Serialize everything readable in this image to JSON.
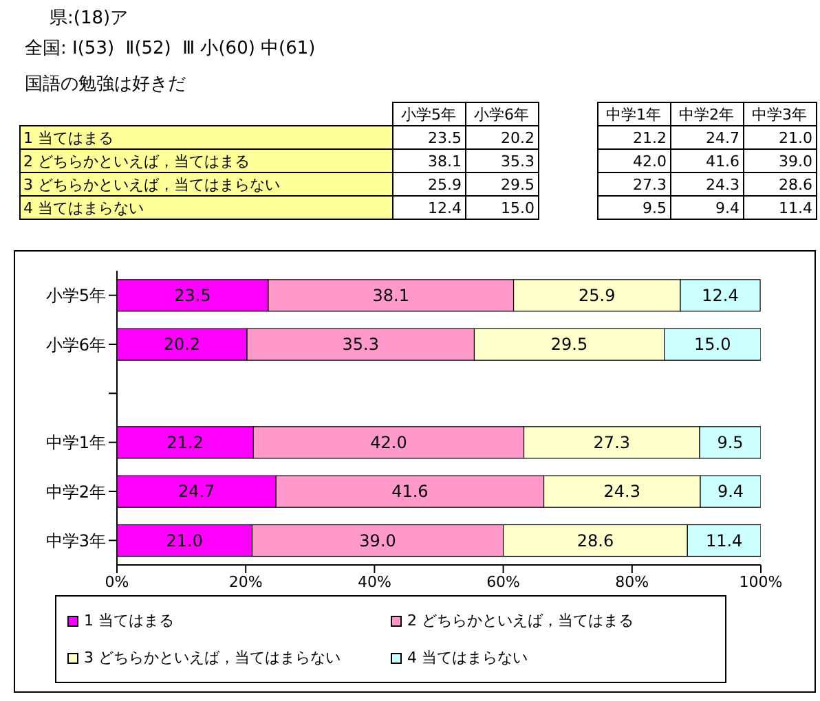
{
  "chart_data": {
    "type": "bar",
    "orientation": "horizontal",
    "stacked": true,
    "title": "県:(18)ア",
    "subtitle": "全国: Ⅰ(53)  Ⅱ(52)  Ⅲ 小(60) 中(61)",
    "annotations": [
      "国語の勉強は好きだ"
    ],
    "categories": [
      "小学5年",
      "小学6年",
      null,
      "中学1年",
      "中学2年",
      "中学3年"
    ],
    "series": [
      {
        "name": "1  当てはまる",
        "color": "#ff00ff",
        "values": [
          23.5,
          20.2,
          null,
          21.2,
          24.7,
          21.0
        ],
        "value_labels": [
          "23.5",
          "20.2",
          null,
          "21.2",
          "24.7",
          "21.0"
        ]
      },
      {
        "name": "2  どちらかといえば，当てはまる",
        "color": "#ff99cc",
        "values": [
          38.1,
          35.3,
          null,
          42.0,
          41.6,
          39.0
        ],
        "value_labels": [
          "38.1",
          "35.3",
          null,
          "42.0",
          "41.6",
          "39.0"
        ]
      },
      {
        "name": "3  どちらかといえば，当てはまらない",
        "color": "#ffffcc",
        "values": [
          25.9,
          29.5,
          null,
          27.3,
          24.3,
          28.6
        ],
        "value_labels": [
          "25.9",
          "29.5",
          null,
          "27.3",
          "24.3",
          "28.6"
        ]
      },
      {
        "name": "4  当てはまらない",
        "color": "#ccffff",
        "values": [
          12.4,
          15.0,
          null,
          9.5,
          9.4,
          11.4
        ],
        "value_labels": [
          "12.4",
          "15.0",
          null,
          "9.5",
          "9.4",
          "11.4"
        ]
      }
    ],
    "xlim": [
      0,
      100
    ],
    "xticks": [
      {
        "value": 0,
        "label": "0%"
      },
      {
        "value": 20,
        "label": "20%"
      },
      {
        "value": 40,
        "label": "40%"
      },
      {
        "value": 60,
        "label": "60%"
      },
      {
        "value": 80,
        "label": "80%"
      },
      {
        "value": 100,
        "label": "100%"
      }
    ],
    "grid": false,
    "legend": "bottom"
  }
}
